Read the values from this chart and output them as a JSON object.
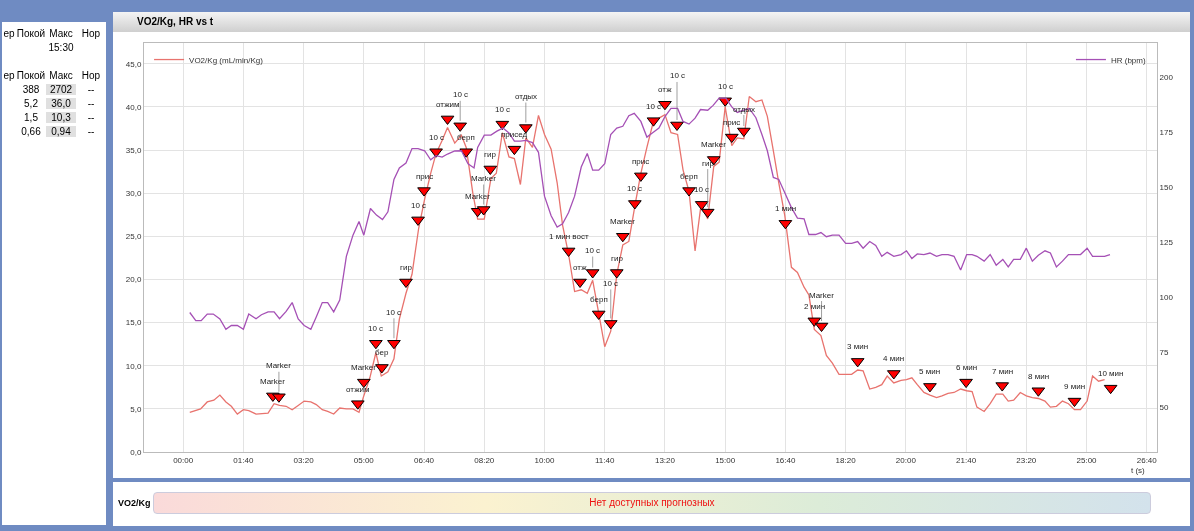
{
  "chart_data": {
    "type": "line",
    "title": "VO2/Kg, HR vs t",
    "xlabel": "t (s)",
    "xlim": [
      -65,
      1617
    ],
    "xticks": [
      {
        "value": 0,
        "label": "00:00"
      },
      {
        "value": 100,
        "label": "01:40"
      },
      {
        "value": 200,
        "label": "03:20"
      },
      {
        "value": 300,
        "label": "05:00"
      },
      {
        "value": 400,
        "label": "06:40"
      },
      {
        "value": 500,
        "label": "08:20"
      },
      {
        "value": 600,
        "label": "10:00"
      },
      {
        "value": 700,
        "label": "11:40"
      },
      {
        "value": 800,
        "label": "13:20"
      },
      {
        "value": 900,
        "label": "15:00"
      },
      {
        "value": 1000,
        "label": "16:40"
      },
      {
        "value": 1100,
        "label": "18:20"
      },
      {
        "value": 1200,
        "label": "20:00"
      },
      {
        "value": 1300,
        "label": "21:40"
      },
      {
        "value": 1400,
        "label": "23:20"
      },
      {
        "value": 1500,
        "label": "25:00"
      },
      {
        "value": 1600,
        "label": "26:40"
      }
    ],
    "ylim": [
      0,
      47.4
    ],
    "yticks": [
      {
        "value": 0,
        "label": "0,0"
      },
      {
        "value": 5,
        "label": "5,0"
      },
      {
        "value": 10,
        "label": "10,0"
      },
      {
        "value": 15,
        "label": "15,0"
      },
      {
        "value": 20,
        "label": "20,0"
      },
      {
        "value": 25,
        "label": "25,0"
      },
      {
        "value": 30,
        "label": "30,0"
      },
      {
        "value": 35,
        "label": "35,0"
      },
      {
        "value": 40,
        "label": "40,0"
      },
      {
        "value": 45,
        "label": "45,0"
      }
    ],
    "y2lim": [
      29.7,
      215.3
    ],
    "y2ticks": [
      50,
      75,
      100,
      125,
      150,
      175,
      200
    ],
    "grid": true,
    "legend": "top",
    "series": [
      {
        "name": "VO2/Kg (mL/min/Kg)",
        "color": "#e8736e",
        "x": [
          11,
          29,
          40,
          51,
          61,
          71,
          80,
          90,
          100,
          109,
          121,
          141,
          151,
          160,
          171,
          181,
          191,
          201,
          212,
          221,
          231,
          240,
          250,
          260,
          271,
          282,
          292,
          299,
          310,
          320,
          329,
          340,
          350,
          359,
          370,
          380,
          391,
          401,
          411,
          420,
          430,
          439,
          451,
          462,
          470,
          481,
          489,
          500,
          511,
          520,
          530,
          541,
          550,
          560,
          569,
          580,
          590,
          600,
          611,
          621,
          630,
          640,
          650,
          661,
          671,
          680,
          690,
          700,
          710,
          720,
          730,
          740,
          751,
          760,
          770,
          779,
          790,
          800,
          810,
          821,
          830,
          840,
          850,
          860,
          871,
          881,
          890,
          900,
          911,
          920,
          931,
          940,
          951,
          961,
          970,
          980,
          989,
          999,
          1010,
          1020,
          1031,
          1039,
          1048,
          1059,
          1068,
          1078,
          1089,
          1100,
          1110,
          1120,
          1129,
          1140,
          1150,
          1160,
          1169,
          1180,
          1192,
          1201,
          1210,
          1219,
          1230,
          1240,
          1251,
          1260,
          1270,
          1280,
          1291,
          1301,
          1310,
          1318,
          1330,
          1340,
          1350,
          1361,
          1370,
          1379,
          1390,
          1400,
          1410,
          1420,
          1431,
          1440,
          1450,
          1460,
          1470,
          1480,
          1490,
          1501,
          1510,
          1520,
          1530
        ],
        "values": [
          4.6,
          5.0,
          5.8,
          6.0,
          6.6,
          5.8,
          5.3,
          4.4,
          4.9,
          4.8,
          4.4,
          4.5,
          5.6,
          5.4,
          5.3,
          4.9,
          5.4,
          5.9,
          5.8,
          5.5,
          4.9,
          4.7,
          4.4,
          5.1,
          5.0,
          5.0,
          4.6,
          6.3,
          8.6,
          11.5,
          8.8,
          9.3,
          10.8,
          15.4,
          18.4,
          20.6,
          25.9,
          29.3,
          32.3,
          34.6,
          36.1,
          37.6,
          35.8,
          36.7,
          35.3,
          30.0,
          27.0,
          27.0,
          31.7,
          32.3,
          37.0,
          34.2,
          34.0,
          31.0,
          36.4,
          35.3,
          39.0,
          36.8,
          35.1,
          31.2,
          26.3,
          22.9,
          18.6,
          18.8,
          18.4,
          19.9,
          16.1,
          12.2,
          14.0,
          20.6,
          24.0,
          24.4,
          28.9,
          32.3,
          35.3,
          37.8,
          38.7,
          39.1,
          37.0,
          36.8,
          32.7,
          30.2,
          23.3,
          28.7,
          27.0,
          33.1,
          33.6,
          40.0,
          35.5,
          36.4,
          36.3,
          41.2,
          40.6,
          40.8,
          38.9,
          34.9,
          31.2,
          27.4,
          21.4,
          20.8,
          19.1,
          18.2,
          14.2,
          13.5,
          11.2,
          10.3,
          9.0,
          9.0,
          9.0,
          9.5,
          9.4,
          7.3,
          7.5,
          7.8,
          8.8,
          8.0,
          8.3,
          8.4,
          8.6,
          7.8,
          6.9,
          6.6,
          6.3,
          6.5,
          6.8,
          6.9,
          7.3,
          7.1,
          7.0,
          5.2,
          4.7,
          5.6,
          6.7,
          6.7,
          5.9,
          6.0,
          6.9,
          6.5,
          6.3,
          6.2,
          5.9,
          5.2,
          5.3,
          5.9,
          5.6,
          4.9,
          4.9,
          5.9,
          8.8,
          8.2,
          8.4
        ]
      },
      {
        "name": "HR (bpm)",
        "axis": "y2",
        "color": "#a550b5",
        "x": [
          11,
          21,
          30,
          40,
          50,
          61,
          71,
          80,
          90,
          100,
          109,
          121,
          130,
          141,
          151,
          160,
          171,
          181,
          191,
          201,
          212,
          221,
          231,
          240,
          250,
          260,
          271,
          282,
          292,
          300,
          311,
          321,
          331,
          340,
          350,
          359,
          370,
          380,
          390,
          401,
          411,
          420,
          430,
          439,
          451,
          462,
          473,
          483,
          489,
          500,
          511,
          521,
          531,
          541,
          550,
          560,
          569,
          580,
          590,
          600,
          611,
          621,
          630,
          640,
          650,
          661,
          671,
          680,
          690,
          700,
          710,
          720,
          730,
          740,
          749,
          760,
          770,
          779,
          790,
          800,
          810,
          821,
          830,
          840,
          850,
          859,
          871,
          880,
          890,
          901,
          911,
          920,
          931,
          940,
          951,
          961,
          970,
          980,
          989,
          999,
          1010,
          1020,
          1031,
          1039,
          1050,
          1059,
          1068,
          1078,
          1089,
          1100,
          1110,
          1120,
          1129,
          1140,
          1150,
          1160,
          1169,
          1180,
          1192,
          1201,
          1210,
          1219,
          1230,
          1240,
          1251,
          1260,
          1270,
          1280,
          1291,
          1301,
          1310,
          1318,
          1330,
          1340,
          1350,
          1361,
          1370,
          1379,
          1390,
          1400,
          1410,
          1420,
          1431,
          1440,
          1450,
          1460,
          1470,
          1480,
          1490,
          1501,
          1510,
          1520,
          1530,
          1539
        ],
        "values": [
          93.0,
          89.3,
          89.3,
          92.3,
          92.3,
          90.1,
          85.4,
          87.1,
          87.1,
          85.4,
          92.3,
          90.2,
          92.0,
          93.3,
          93.3,
          90.2,
          93.5,
          97.5,
          90.1,
          87.1,
          85.4,
          91.0,
          97.5,
          97.5,
          93.3,
          98.6,
          118.5,
          128.1,
          134.3,
          128.1,
          140.2,
          137.2,
          135.2,
          138.7,
          153.4,
          158.6,
          160.8,
          167.4,
          167.4,
          166.4,
          162.3,
          164.2,
          163.5,
          164.9,
          166.3,
          166.4,
          160.5,
          158.6,
          167.9,
          173.5,
          173.5,
          175.3,
          176.7,
          174.5,
          170.8,
          170.8,
          171.1,
          170.1,
          165.7,
          145.8,
          136.9,
          131.8,
          133.3,
          138.4,
          145.8,
          159.0,
          165.2,
          157.6,
          157.6,
          160.5,
          173.8,
          176.7,
          177.5,
          182.3,
          183.4,
          179.7,
          172.6,
          174.5,
          176.7,
          181.9,
          185.6,
          185.6,
          179.7,
          178.5,
          181.2,
          185.1,
          184.8,
          187.0,
          190.3,
          190.3,
          186.3,
          183.8,
          184.8,
          185.6,
          181.4,
          173.8,
          166.4,
          154.3,
          153.4,
          147.3,
          140.6,
          135.8,
          135.5,
          128.4,
          128.4,
          129.3,
          127.4,
          128.1,
          128.1,
          124.4,
          124.4,
          125.2,
          122.2,
          125.2,
          123.4,
          118.5,
          120.3,
          118.5,
          119.3,
          121.0,
          117.5,
          119.6,
          119.3,
          120.0,
          118.5,
          119.3,
          119.3,
          118.5,
          112.3,
          119.3,
          119.3,
          118.5,
          116.3,
          119.3,
          114.5,
          117.1,
          113.7,
          117.1,
          117.1,
          122.2,
          116.3,
          119.0,
          121.0,
          120.0,
          113.7,
          116.3,
          119.3,
          119.3,
          119.3,
          122.2,
          118.5,
          118.5,
          118.5,
          119.3
        ]
      },
      {
        "type": "scatter",
        "color": "#ff0000",
        "marker": "triangle",
        "x": [
          149,
          159,
          290,
          300,
          320,
          330,
          350,
          370,
          390,
          400,
          420,
          439,
          460,
          470,
          489,
          499,
          510,
          530,
          550,
          569,
          640,
          659,
          680,
          690,
          710,
          720,
          730,
          750,
          760,
          781,
          800,
          820,
          840,
          861,
          871,
          881,
          900,
          911,
          931,
          1000,
          1048,
          1060,
          1120,
          1180,
          1240,
          1300,
          1360,
          1420,
          1480,
          1540
        ],
        "values": [
          6.5,
          6.4,
          5.6,
          8.1,
          12.6,
          9.8,
          12.6,
          19.7,
          26.9,
          30.3,
          34.8,
          38.6,
          37.8,
          34.8,
          27.9,
          28.1,
          32.8,
          38.0,
          35.1,
          37.6,
          23.3,
          19.7,
          20.8,
          16.0,
          14.9,
          20.8,
          25.0,
          28.8,
          32.0,
          38.4,
          40.3,
          37.9,
          30.3,
          28.7,
          27.8,
          33.9,
          40.7,
          36.5,
          37.2,
          26.5,
          15.2,
          14.6,
          10.5,
          9.1,
          7.6,
          8.1,
          7.7,
          7.1,
          5.9,
          7.4
        ]
      }
    ],
    "annotations": [
      "ер",
      "Покой",
      "Макс",
      "Нор",
      "15:30",
      "ер",
      "Покой",
      "Макс",
      "Нор",
      "388",
      "2702",
      "--",
      "5,2",
      "36,0",
      "--",
      "1,5",
      "10,3",
      "--",
      "0,66",
      "0,94",
      "--",
      "VO2/Kg",
      "Нет доступных прогнозных",
      {
        "text": "Marker",
        "x": 149,
        "y": 6.5
      },
      {
        "text": "Marker",
        "x": 159,
        "y": 6.4
      },
      {
        "text": "отжим",
        "x": 290,
        "y": 5.6
      },
      {
        "text": "Marker",
        "x": 300,
        "y": 8.1
      },
      {
        "text": "10 с",
        "x": 320,
        "y": 12.6
      },
      {
        "text": "бер",
        "x": 330,
        "y": 9.8
      },
      {
        "text": "10 с",
        "x": 350,
        "y": 12.6
      },
      {
        "text": "гир",
        "x": 370,
        "y": 19.7
      },
      {
        "text": "10 с",
        "x": 390,
        "y": 26.9
      },
      {
        "text": "прис",
        "x": 400,
        "y": 30.3
      },
      {
        "text": "10 с",
        "x": 420,
        "y": 34.8
      },
      {
        "text": "отжим",
        "x": 439,
        "y": 38.6
      },
      {
        "text": "10 с",
        "x": 460,
        "y": 37.8
      },
      {
        "text": "берп",
        "x": 470,
        "y": 34.8
      },
      {
        "text": "Marker",
        "x": 489,
        "y": 27.9
      },
      {
        "text": "Marker",
        "x": 499,
        "y": 28.1
      },
      {
        "text": "гир",
        "x": 510,
        "y": 32.8
      },
      {
        "text": "10 с",
        "x": 530,
        "y": 38.0
      },
      {
        "text": "присед",
        "x": 550,
        "y": 35.1
      },
      {
        "text": "отдых",
        "x": 569,
        "y": 37.6
      },
      {
        "text": "1 мин вост",
        "x": 640,
        "y": 23.3
      },
      {
        "text": "отж",
        "x": 659,
        "y": 19.7
      },
      {
        "text": "10 с",
        "x": 680,
        "y": 20.8
      },
      {
        "text": "берп",
        "x": 690,
        "y": 16.0
      },
      {
        "text": "10 с",
        "x": 710,
        "y": 14.9
      },
      {
        "text": "гир",
        "x": 720,
        "y": 20.8
      },
      {
        "text": "Marker",
        "x": 730,
        "y": 25.0
      },
      {
        "text": "10 с",
        "x": 750,
        "y": 28.8
      },
      {
        "text": "прис",
        "x": 760,
        "y": 32.0
      },
      {
        "text": "10 с",
        "x": 781,
        "y": 38.4
      },
      {
        "text": "отж",
        "x": 800,
        "y": 40.3
      },
      {
        "text": "10 с",
        "x": 820,
        "y": 37.9
      },
      {
        "text": "берп",
        "x": 840,
        "y": 30.3
      },
      {
        "text": "10 с",
        "x": 861,
        "y": 28.7
      },
      {
        "text": "гир",
        "x": 871,
        "y": 27.8
      },
      {
        "text": "Marker",
        "x": 881,
        "y": 33.9
      },
      {
        "text": "10 с",
        "x": 900,
        "y": 40.7
      },
      {
        "text": "прис",
        "x": 911,
        "y": 36.5
      },
      {
        "text": "отдых",
        "x": 931,
        "y": 37.2
      },
      {
        "text": "1 мин",
        "x": 1000,
        "y": 26.5
      },
      {
        "text": "2 мин",
        "x": 1048,
        "y": 15.2
      },
      {
        "text": "Marker",
        "x": 1060,
        "y": 14.6
      },
      {
        "text": "3 мин",
        "x": 1120,
        "y": 10.5
      },
      {
        "text": "4 мин",
        "x": 1180,
        "y": 9.1
      },
      {
        "text": "5 мин",
        "x": 1240,
        "y": 7.6
      },
      {
        "text": "6 мин",
        "x": 1300,
        "y": 8.1
      },
      {
        "text": "7 мин",
        "x": 1360,
        "y": 7.7
      },
      {
        "text": "8 мин",
        "x": 1420,
        "y": 7.1
      },
      {
        "text": "9 мин",
        "x": 1480,
        "y": 5.9
      },
      {
        "text": "10 мин",
        "x": 1540,
        "y": 7.4
      }
    ]
  }
}
